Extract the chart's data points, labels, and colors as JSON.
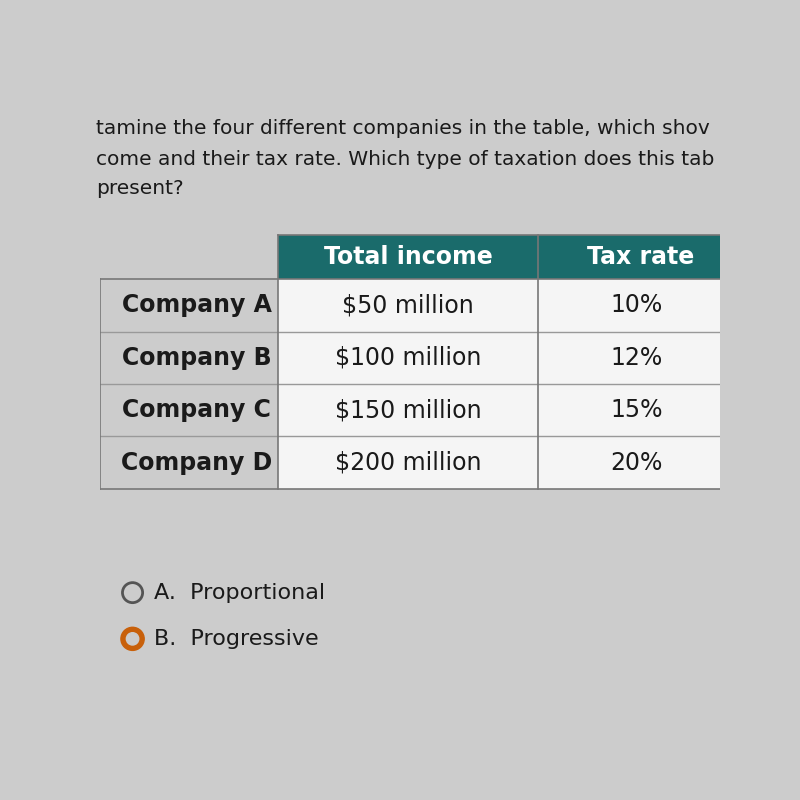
{
  "title_line1": "tamine the four different companies in the table, which shov",
  "title_line2": "come and their tax rate. Which type of taxation does this tab",
  "title_line3": "present?",
  "header_bg_color": "#1a6b6b",
  "header_text_color": "#ffffff",
  "header_cols": [
    "Total income",
    "Tax rate"
  ],
  "row_labels": [
    "Company A",
    "Company B",
    "Company C",
    "Company D"
  ],
  "col1_values": [
    "$50 million",
    "$100 million",
    "$150 million",
    "$200 million"
  ],
  "col2_values": [
    "10%",
    "12%",
    "15%",
    "20%"
  ],
  "bg_color": "#cccccc",
  "table_bg_color": "#e8e8e8",
  "cell_bg_color": "#f0f0f0",
  "row_line_color": "#999999",
  "answer_a_text": "A.  Proportional",
  "answer_b_text": "B.  Progressive",
  "answer_circle_color": "#8b4513",
  "answer_circle_fill": "#c8600a",
  "text_color": "#1a1a1a",
  "title_fontsize": 14.5,
  "table_header_fontsize": 17,
  "table_data_fontsize": 17,
  "answer_fontsize": 16
}
